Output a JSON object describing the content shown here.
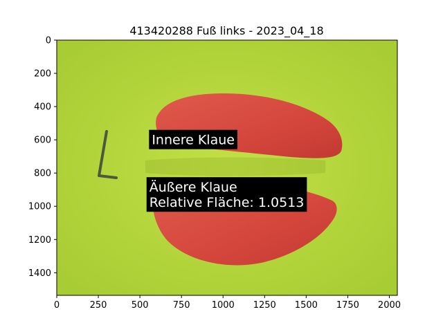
{
  "plot": {
    "title": "413420288 Fuß links - 2023_04_18",
    "xlim": [
      0,
      2048
    ],
    "ylim": [
      1536,
      0
    ],
    "x_ticks": [
      0,
      250,
      500,
      750,
      1000,
      1250,
      1500,
      1750,
      2000
    ],
    "y_ticks": [
      0,
      200,
      400,
      600,
      800,
      1000,
      1200,
      1400
    ]
  },
  "image": {
    "background_color": "#b6d83a",
    "overlay_color": "#d6483e",
    "marking": "L",
    "regions": [
      {
        "name": "innere-klaue",
        "x": [
          530,
          1715
        ],
        "y": [
          320,
          755
        ]
      },
      {
        "name": "aeussere-klaue",
        "x": [
          540,
          1690
        ],
        "y": [
          880,
          1345
        ]
      }
    ]
  },
  "annotations": [
    {
      "name": "innere-klaue-label",
      "lines": [
        "Innere Klaue"
      ],
      "x": 555,
      "y": 540
    },
    {
      "name": "aeussere-klaue-label",
      "lines": [
        "Äußere Klaue",
        "Relative Fläche: 1.0513"
      ],
      "x": 540,
      "y": 825
    }
  ]
}
